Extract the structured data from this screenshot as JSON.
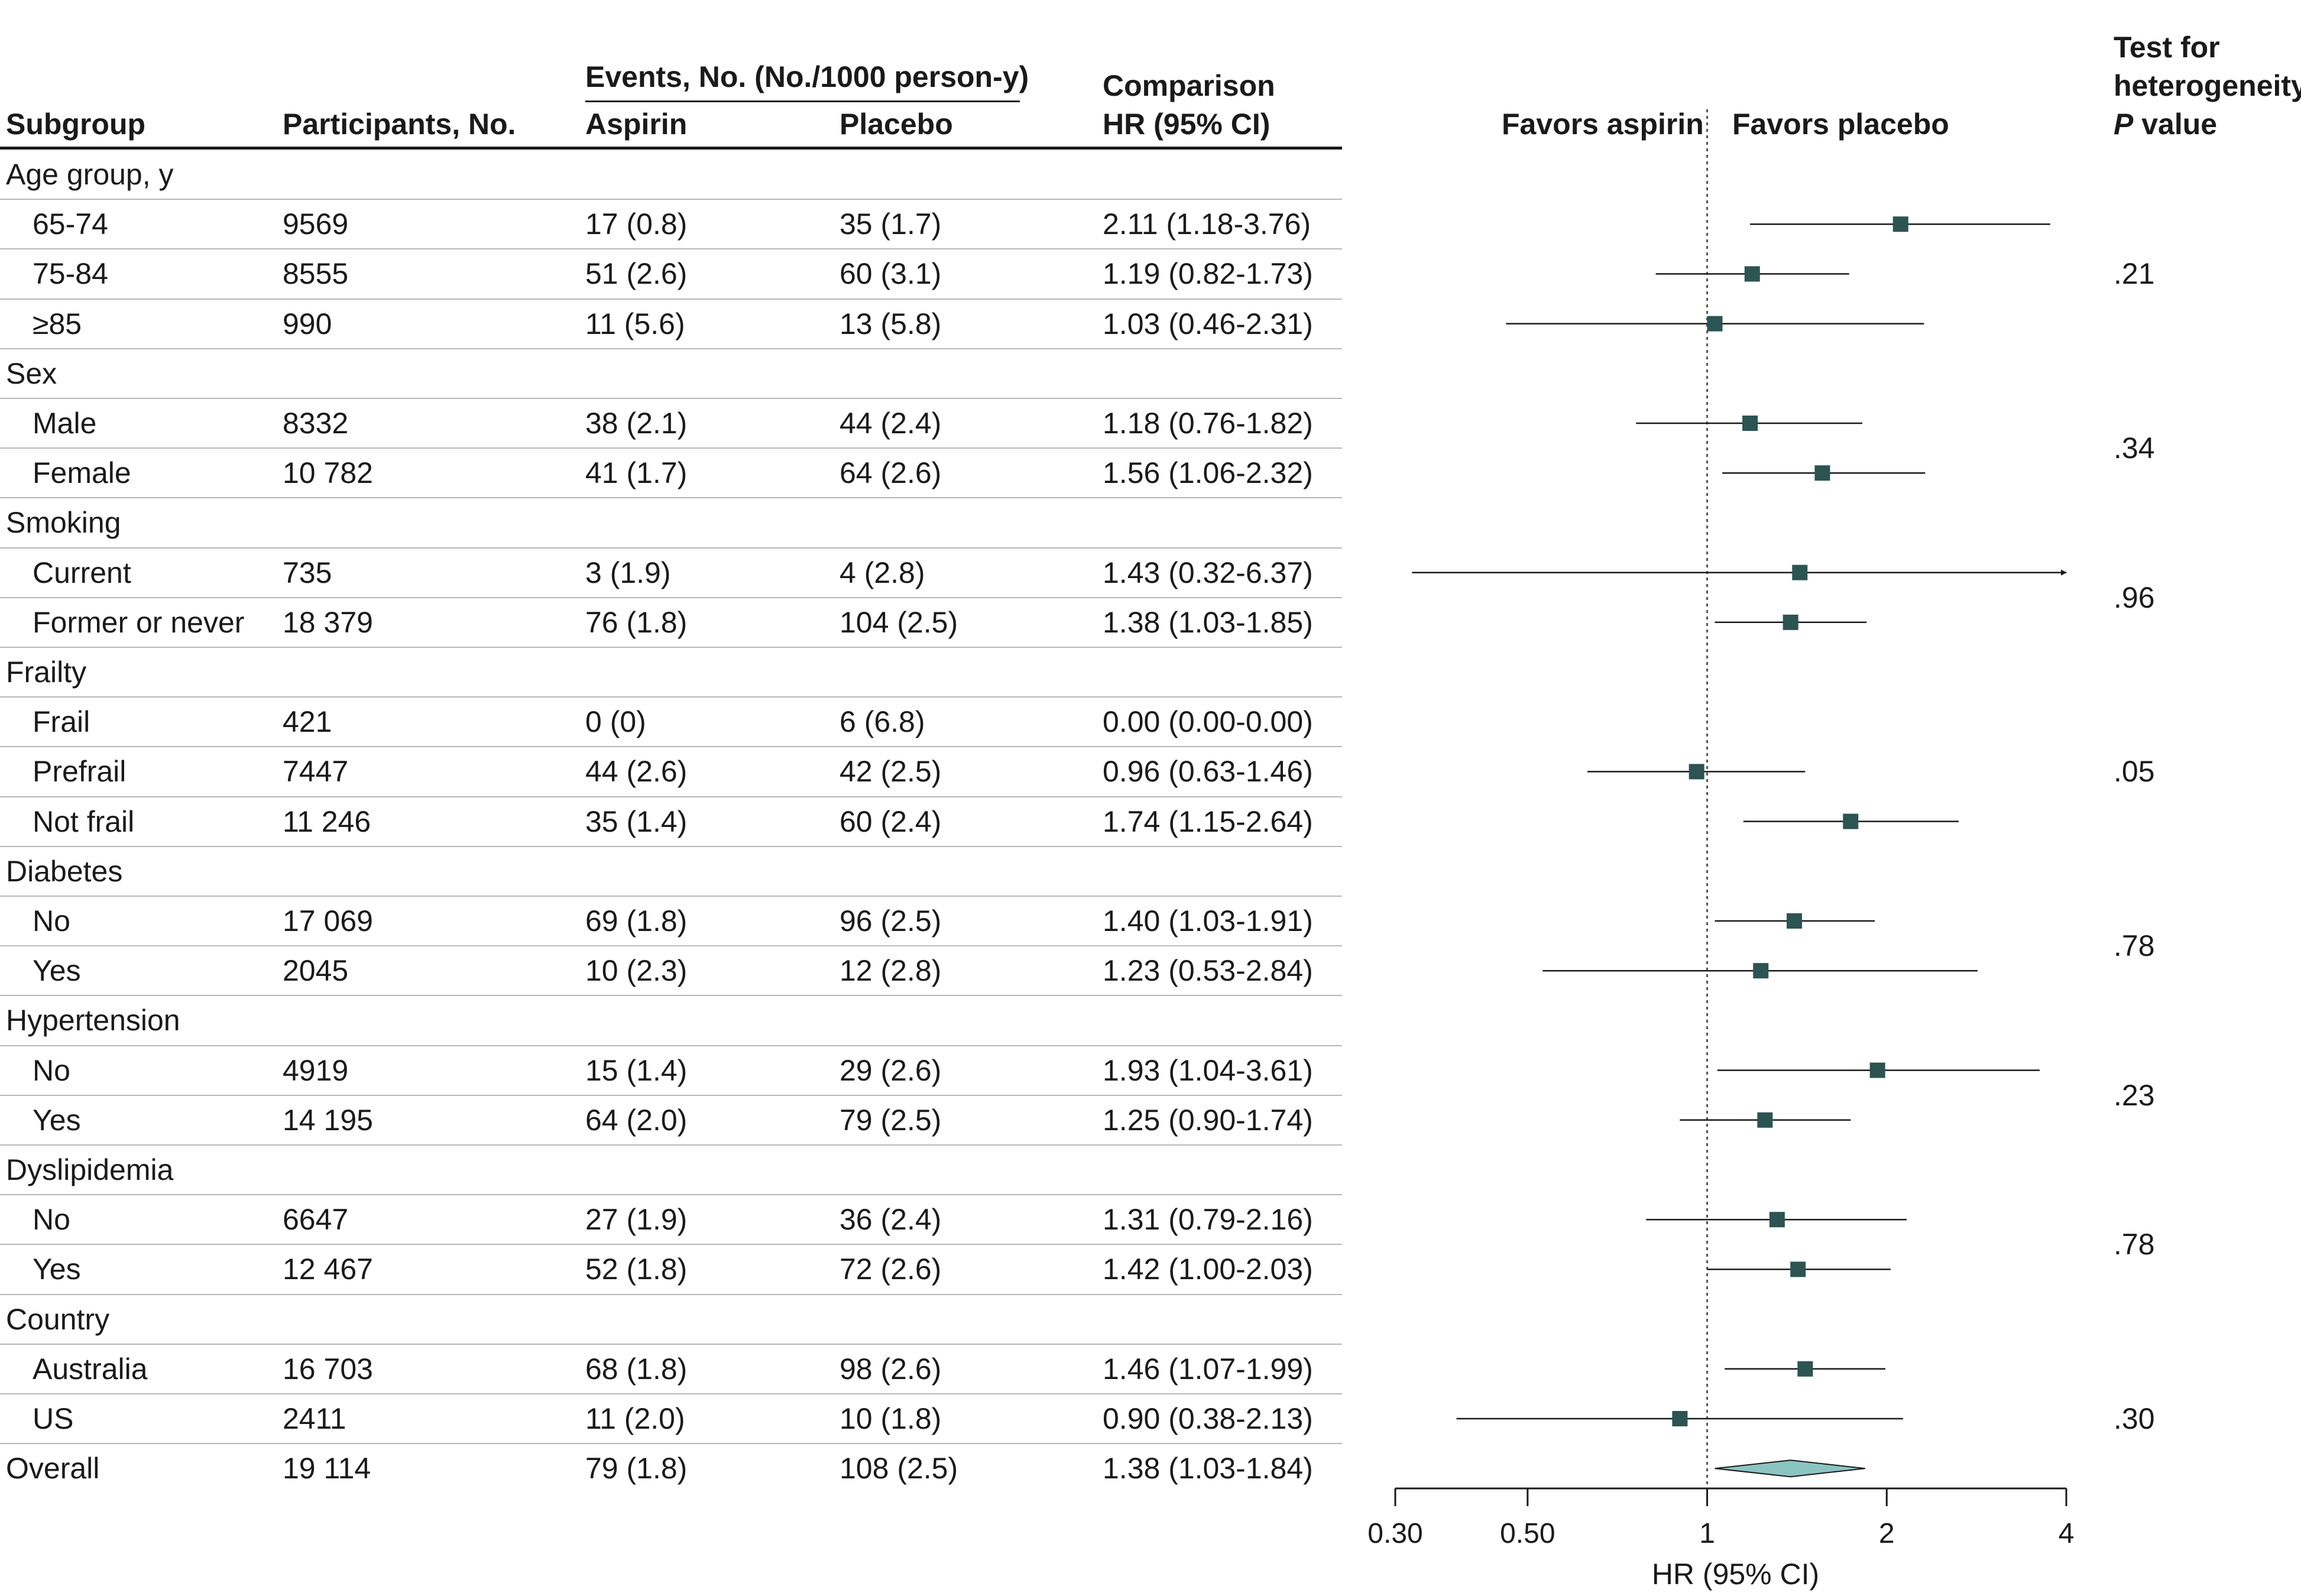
{
  "headers": {
    "subgroup": "Subgroup",
    "participants": "Participants, No.",
    "events": "Events, No. (No./1000 person-y)",
    "aspirin": "Aspirin",
    "placebo": "Placebo",
    "comparison": "Comparison",
    "hr": "HR (95% CI)",
    "favors_aspirin": "Favors aspirin",
    "favors_placebo": "Favors placebo",
    "het1": "Test for",
    "het2": "heterogeneity",
    "het3_italic": "P",
    "het3_rest": " value"
  },
  "rows": [
    {
      "type": "group",
      "label": "Age group, y"
    },
    {
      "type": "sub",
      "label": "65-74",
      "participants": "9569",
      "aspirin": "17 (0.8)",
      "placebo": "35 (1.7)",
      "hr_text": "2.11 (1.18-3.76)"
    },
    {
      "type": "sub",
      "label": "75-84",
      "participants": "8555",
      "aspirin": "51 (2.6)",
      "placebo": "60 (3.1)",
      "hr_text": "1.19 (0.82-1.73)"
    },
    {
      "type": "sub",
      "label": "≥85",
      "participants": "990",
      "aspirin": "11 (5.6)",
      "placebo": "13 (5.8)",
      "hr_text": "1.03 (0.46-2.31)"
    },
    {
      "type": "group",
      "label": "Sex"
    },
    {
      "type": "sub",
      "label": "Male",
      "participants": "8332",
      "aspirin": "38 (2.1)",
      "placebo": "44 (2.4)",
      "hr_text": "1.18 (0.76-1.82)"
    },
    {
      "type": "sub",
      "label": "Female",
      "participants": "10 782",
      "aspirin": "41 (1.7)",
      "placebo": "64 (2.6)",
      "hr_text": "1.56 (1.06-2.32)"
    },
    {
      "type": "group",
      "label": "Smoking"
    },
    {
      "type": "sub",
      "label": "Current",
      "participants": "735",
      "aspirin": "3 (1.9)",
      "placebo": "4 (2.8)",
      "hr_text": "1.43 (0.32-6.37)"
    },
    {
      "type": "sub",
      "label": "Former or never",
      "participants": "18 379",
      "aspirin": "76 (1.8)",
      "placebo": "104 (2.5)",
      "hr_text": "1.38 (1.03-1.85)"
    },
    {
      "type": "group",
      "label": "Frailty"
    },
    {
      "type": "sub",
      "label": "Frail",
      "participants": "421",
      "aspirin": "0 (0)",
      "placebo": "6 (6.8)",
      "hr_text": "0.00 (0.00-0.00)"
    },
    {
      "type": "sub",
      "label": "Prefrail",
      "participants": "7447",
      "aspirin": "44 (2.6)",
      "placebo": "42 (2.5)",
      "hr_text": "0.96 (0.63-1.46)"
    },
    {
      "type": "sub",
      "label": "Not frail",
      "participants": "11 246",
      "aspirin": "35 (1.4)",
      "placebo": "60 (2.4)",
      "hr_text": "1.74 (1.15-2.64)"
    },
    {
      "type": "group",
      "label": "Diabetes"
    },
    {
      "type": "sub",
      "label": "No",
      "participants": "17 069",
      "aspirin": "69 (1.8)",
      "placebo": "96 (2.5)",
      "hr_text": "1.40 (1.03-1.91)"
    },
    {
      "type": "sub",
      "label": "Yes",
      "participants": "2045",
      "aspirin": "10 (2.3)",
      "placebo": "12 (2.8)",
      "hr_text": "1.23 (0.53-2.84)"
    },
    {
      "type": "group",
      "label": "Hypertension"
    },
    {
      "type": "sub",
      "label": "No",
      "participants": "4919",
      "aspirin": "15 (1.4)",
      "placebo": "29 (2.6)",
      "hr_text": "1.93 (1.04-3.61)"
    },
    {
      "type": "sub",
      "label": "Yes",
      "participants": "14 195",
      "aspirin": "64 (2.0)",
      "placebo": "79 (2.5)",
      "hr_text": "1.25 (0.90-1.74)"
    },
    {
      "type": "group",
      "label": "Dyslipidemia"
    },
    {
      "type": "sub",
      "label": "No",
      "participants": "6647",
      "aspirin": "27 (1.9)",
      "placebo": "36 (2.4)",
      "hr_text": "1.31 (0.79-2.16)"
    },
    {
      "type": "sub",
      "label": "Yes",
      "participants": "12 467",
      "aspirin": "52 (1.8)",
      "placebo": "72 (2.6)",
      "hr_text": "1.42 (1.00-2.03)"
    },
    {
      "type": "group",
      "label": "Country"
    },
    {
      "type": "sub",
      "label": "Australia",
      "participants": "16 703",
      "aspirin": "68 (1.8)",
      "placebo": "98 (2.6)",
      "hr_text": "1.46 (1.07-1.99)"
    },
    {
      "type": "sub",
      "label": "US",
      "participants": "2411",
      "aspirin": "11 (2.0)",
      "placebo": "10 (1.8)",
      "hr_text": "0.90 (0.38-2.13)"
    },
    {
      "type": "overall",
      "label": "Overall",
      "participants": "19 114",
      "aspirin": "79 (1.8)",
      "placebo": "108 (2.5)",
      "hr_text": "1.38 (1.03-1.84)"
    }
  ],
  "p_values": [
    {
      "group": "Age group, y",
      "value": ".21"
    },
    {
      "group": "Sex",
      "value": ".34"
    },
    {
      "group": "Smoking",
      "value": ".96"
    },
    {
      "group": "Frailty",
      "value": ".05"
    },
    {
      "group": "Diabetes",
      "value": ".78"
    },
    {
      "group": "Hypertension",
      "value": ".23"
    },
    {
      "group": "Dyslipidemia",
      "value": ".78"
    },
    {
      "group": "Country",
      "value": ".30"
    }
  ],
  "chart_data": {
    "type": "forest",
    "scale": "log",
    "xlabel": "HR (95% CI)",
    "xlim": [
      0.3,
      4
    ],
    "ticks": [
      0.3,
      0.5,
      1,
      2,
      4
    ],
    "tick_labels": [
      "0.30",
      "0.50",
      "1",
      "2",
      "4"
    ],
    "reference_line": 1,
    "marker_color": "#2b5453",
    "diamond_color": "#8cc3c3",
    "series": [
      {
        "name": "65-74",
        "hr": 2.11,
        "lo": 1.18,
        "hi": 3.76
      },
      {
        "name": "75-84",
        "hr": 1.19,
        "lo": 0.82,
        "hi": 1.73
      },
      {
        "name": "≥85",
        "hr": 1.03,
        "lo": 0.46,
        "hi": 2.31
      },
      {
        "name": "Male",
        "hr": 1.18,
        "lo": 0.76,
        "hi": 1.82
      },
      {
        "name": "Female",
        "hr": 1.56,
        "lo": 1.06,
        "hi": 2.32
      },
      {
        "name": "Current",
        "hr": 1.43,
        "lo": 0.32,
        "hi": 6.37
      },
      {
        "name": "Former or never",
        "hr": 1.38,
        "lo": 1.03,
        "hi": 1.85
      },
      {
        "name": "Frail",
        "hr": null,
        "lo": null,
        "hi": null
      },
      {
        "name": "Prefrail",
        "hr": 0.96,
        "lo": 0.63,
        "hi": 1.46
      },
      {
        "name": "Not frail",
        "hr": 1.74,
        "lo": 1.15,
        "hi": 2.64
      },
      {
        "name": "Diabetes No",
        "hr": 1.4,
        "lo": 1.03,
        "hi": 1.91
      },
      {
        "name": "Diabetes Yes",
        "hr": 1.23,
        "lo": 0.53,
        "hi": 2.84
      },
      {
        "name": "Hypertension No",
        "hr": 1.93,
        "lo": 1.04,
        "hi": 3.61
      },
      {
        "name": "Hypertension Yes",
        "hr": 1.25,
        "lo": 0.9,
        "hi": 1.74
      },
      {
        "name": "Dyslipidemia No",
        "hr": 1.31,
        "lo": 0.79,
        "hi": 2.16
      },
      {
        "name": "Dyslipidemia Yes",
        "hr": 1.42,
        "lo": 1.0,
        "hi": 2.03
      },
      {
        "name": "Australia",
        "hr": 1.46,
        "lo": 1.07,
        "hi": 1.99
      },
      {
        "name": "US",
        "hr": 0.9,
        "lo": 0.38,
        "hi": 2.13
      },
      {
        "name": "Overall",
        "hr": 1.38,
        "lo": 1.03,
        "hi": 1.84,
        "overall": true
      }
    ]
  }
}
